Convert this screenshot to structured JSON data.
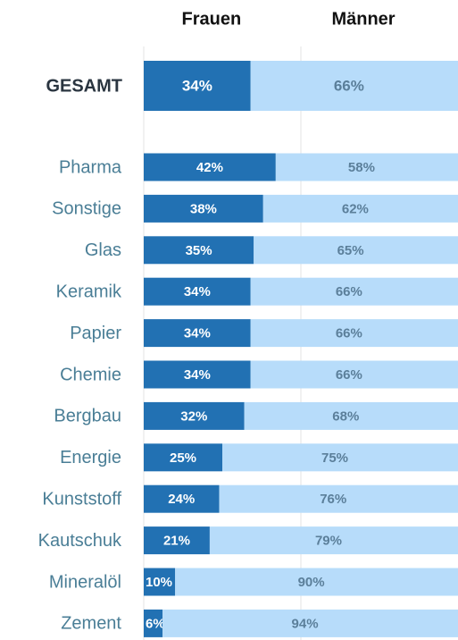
{
  "chart_data": {
    "type": "stacked-bar-horizontal",
    "categories": [
      "GESAMT",
      "Pharma",
      "Sonstige",
      "Glas",
      "Keramik",
      "Papier",
      "Chemie",
      "Bergbau",
      "Energie",
      "Kunststoff",
      "Kautschuk",
      "Mineralöl",
      "Zement"
    ],
    "series": [
      {
        "name": "Frauen",
        "color": "#2271b3",
        "values": [
          34,
          42,
          38,
          35,
          34,
          34,
          34,
          32,
          25,
          24,
          21,
          10,
          6
        ],
        "value_labels": [
          "34%",
          "42%",
          "38%",
          "35%",
          "34%",
          "34%",
          "34%",
          "32%",
          "25%",
          "24%",
          "21%",
          "10%",
          "6%"
        ]
      },
      {
        "name": "Männer",
        "color": "#b7dcfa",
        "values": [
          66,
          58,
          62,
          65,
          66,
          66,
          66,
          68,
          75,
          76,
          79,
          90,
          94
        ],
        "value_labels": [
          "66%",
          "58%",
          "62%",
          "65%",
          "66%",
          "66%",
          "66%",
          "68%",
          "75%",
          "76%",
          "79%",
          "90%",
          "94%"
        ]
      }
    ],
    "xlim": [
      0,
      100
    ],
    "xticks": [
      0,
      50
    ],
    "grid": true
  }
}
